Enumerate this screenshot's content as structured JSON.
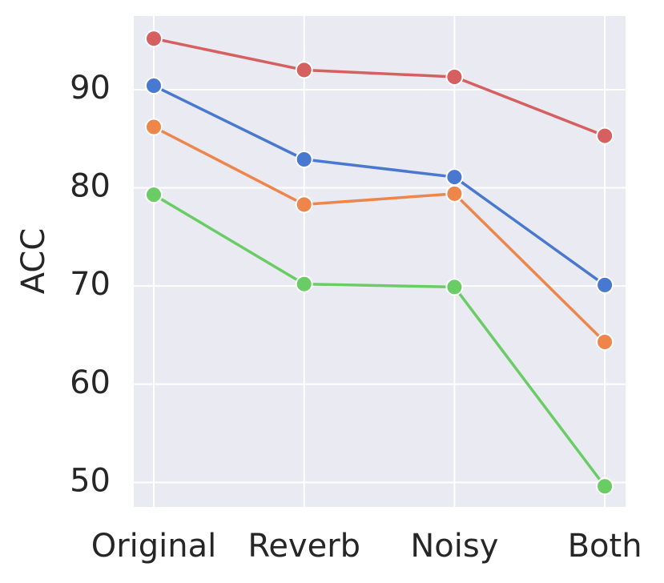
{
  "chart_data": {
    "type": "line",
    "y_label": "ACC",
    "categories": [
      "Original",
      "Reverb",
      "Noisy",
      "Both"
    ],
    "series": [
      {
        "color": "#d65f5f",
        "values": [
          95.2,
          92.0,
          91.3,
          85.3
        ]
      },
      {
        "color": "#4878d0",
        "values": [
          90.4,
          82.9,
          81.1,
          70.1
        ]
      },
      {
        "color": "#ee854a",
        "values": [
          86.2,
          78.3,
          79.4,
          64.3
        ]
      },
      {
        "color": "#6acc64",
        "values": [
          79.3,
          70.2,
          69.9,
          49.6
        ]
      }
    ],
    "ylim": [
      47.5,
      97.5
    ],
    "yticks": [
      50,
      60,
      70,
      80,
      90
    ],
    "grid": true
  }
}
